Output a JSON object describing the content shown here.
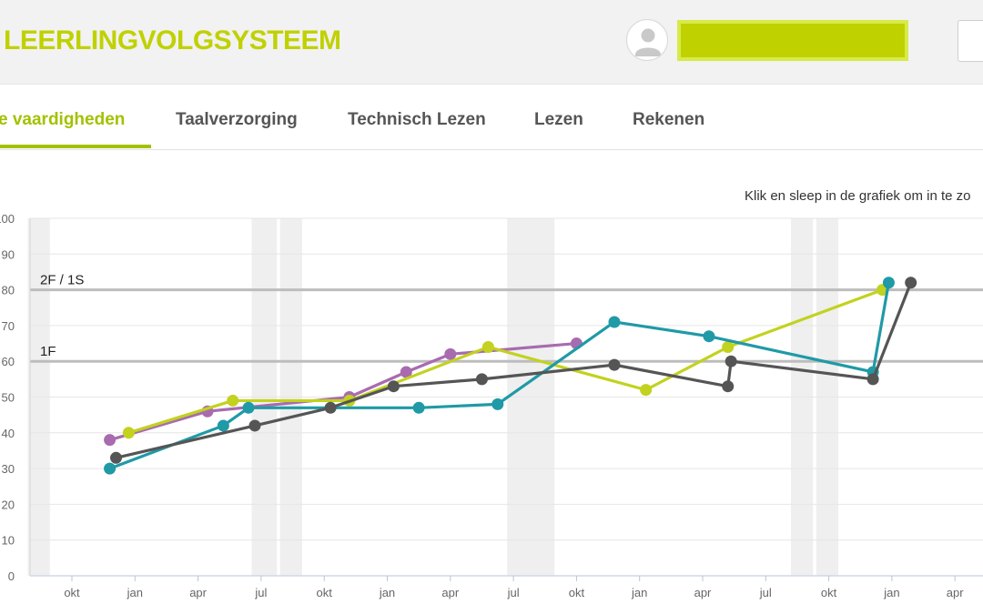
{
  "header": {
    "brand": "LEERLINGVOLGSYSTEEM",
    "brand_color": "#c0d100",
    "user_name": ""
  },
  "tabs": [
    {
      "label": "e vaardigheden",
      "active": true
    },
    {
      "label": "Taalverzorging",
      "active": false
    },
    {
      "label": "Technisch Lezen",
      "active": false
    },
    {
      "label": "Lezen",
      "active": false
    },
    {
      "label": "Rekenen",
      "active": false
    }
  ],
  "accent_color": "#a3c100",
  "hint": "Klik en sleep in de grafiek om in te zo",
  "chart_data": {
    "type": "line",
    "ylim": [
      0,
      100
    ],
    "y_ticks": [
      "0",
      "10",
      "20",
      "30",
      "40",
      "50",
      "60",
      "70",
      "80",
      "90",
      "100"
    ],
    "x_ticks": [
      "okt",
      "jan",
      "apr",
      "jul",
      "okt",
      "jan",
      "apr",
      "jul",
      "okt",
      "jan",
      "apr",
      "jul",
      "okt",
      "jan",
      "apr"
    ],
    "x_unit": "months",
    "xlim": [
      0,
      15.5
    ],
    "grid": true,
    "reference_lines": [
      {
        "label": "2F / 1S",
        "value": 80
      },
      {
        "label": "1F",
        "value": 60
      }
    ],
    "shaded_periods": [
      [
        -0.7,
        -0.35
      ],
      [
        2.85,
        3.25
      ],
      [
        3.3,
        3.65
      ],
      [
        6.9,
        7.65
      ],
      [
        11.4,
        11.75
      ],
      [
        11.8,
        12.15
      ]
    ],
    "series": [
      {
        "color": "#a86bb0",
        "points": [
          [
            0.6,
            38
          ],
          [
            2.15,
            46
          ],
          [
            4.4,
            50
          ],
          [
            5.3,
            57
          ],
          [
            6.0,
            62
          ],
          [
            8.0,
            65
          ]
        ]
      },
      {
        "color": "#c2d21e",
        "points": [
          [
            0.9,
            40
          ],
          [
            2.55,
            49
          ],
          [
            4.4,
            49
          ],
          [
            6.6,
            64
          ],
          [
            9.1,
            52
          ],
          [
            10.4,
            64
          ],
          [
            12.85,
            80
          ]
        ]
      },
      {
        "color": "#1f9aa6",
        "points": [
          [
            0.6,
            30
          ],
          [
            2.4,
            42
          ],
          [
            2.8,
            47
          ],
          [
            5.5,
            47
          ],
          [
            6.75,
            48
          ],
          [
            8.6,
            71
          ],
          [
            10.1,
            67
          ],
          [
            12.7,
            57
          ],
          [
            12.95,
            82
          ]
        ]
      },
      {
        "color": "#555555",
        "points": [
          [
            0.7,
            33
          ],
          [
            2.9,
            42
          ],
          [
            4.1,
            47
          ],
          [
            5.1,
            53
          ],
          [
            6.5,
            55
          ],
          [
            8.6,
            59
          ],
          [
            10.4,
            53
          ],
          [
            10.45,
            60
          ],
          [
            12.7,
            55
          ],
          [
            13.3,
            82
          ]
        ]
      }
    ]
  }
}
